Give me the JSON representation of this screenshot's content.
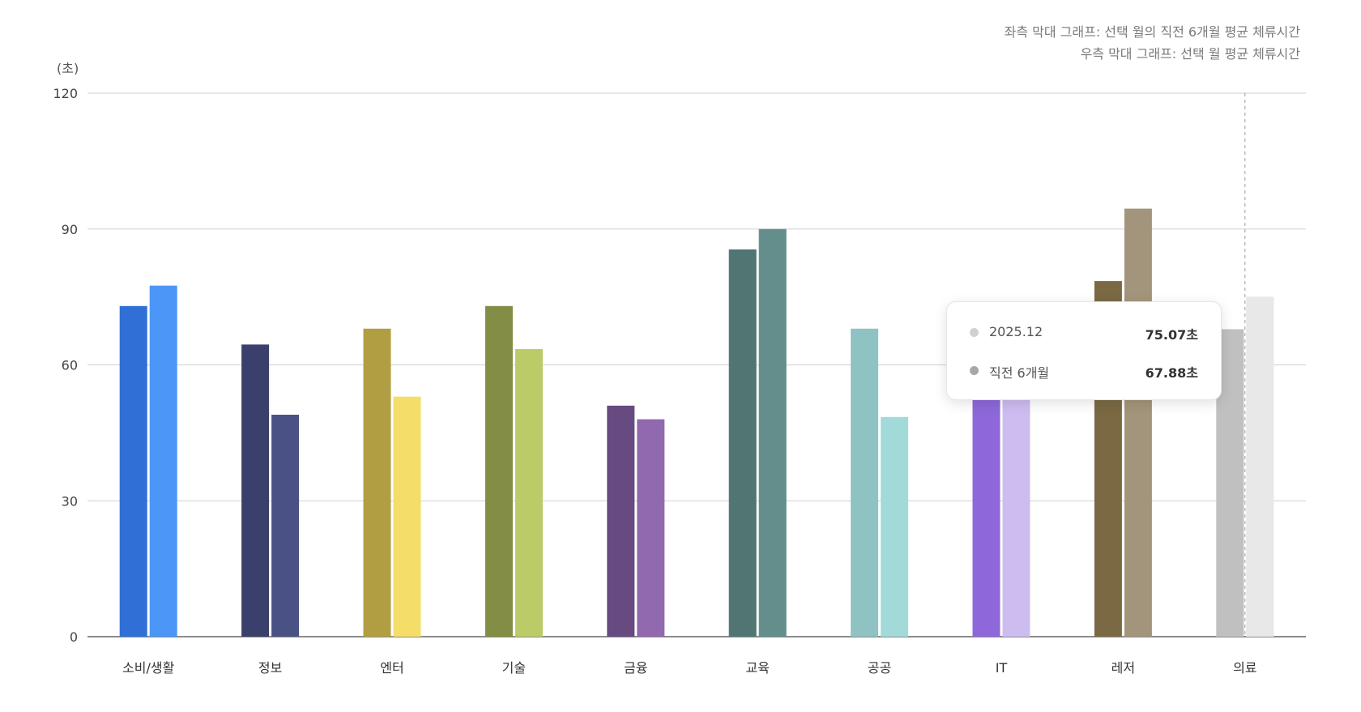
{
  "notes": {
    "line1": "좌측 막대 그래프: 선택 월의 직전 6개월 평균 체류시간",
    "line2": "우측 막대 그래프: 선택 월 평균 체류시간"
  },
  "tooltip": {
    "row1": {
      "label": "2025.12",
      "value": "75.07초",
      "color": "#d0d0d0"
    },
    "row2": {
      "label": "직전 6개월",
      "value": "67.88초",
      "color": "#a8a8a8"
    }
  },
  "chart_data": {
    "type": "bar",
    "y_unit_label": "(초)",
    "ylim": [
      0,
      120
    ],
    "yticks": [
      0,
      30,
      60,
      90,
      120
    ],
    "grid": true,
    "categories": [
      "소비/생활",
      "정보",
      "엔터",
      "기술",
      "금융",
      "교육",
      "공공",
      "IT",
      "레저",
      "의료"
    ],
    "series": [
      {
        "values": [
          73,
          64.5,
          68,
          73,
          51,
          85.5,
          68,
          57,
          78.5,
          67.88
        ],
        "colors": [
          "#2f6fd6",
          "#3a3f6c",
          "#b29e42",
          "#848d45",
          "#664a80",
          "#507572",
          "#8fc2c2",
          "#8e68da",
          "#7b6944",
          "#c0c0c0"
        ]
      },
      {
        "values": [
          77.5,
          49,
          53,
          63.5,
          48,
          90,
          48.5,
          56,
          94.5,
          75.07
        ],
        "colors": [
          "#4b96f6",
          "#4a5285",
          "#f4de69",
          "#bbcb68",
          "#9169ae",
          "#638e8b",
          "#a2dad9",
          "#cdbcf0",
          "#a3957b",
          "#e8e8e8"
        ]
      }
    ],
    "highlight_category": "의료"
  }
}
